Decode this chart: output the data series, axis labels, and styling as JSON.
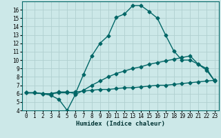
{
  "xlabel": "Humidex (Indice chaleur)",
  "bg_color": "#cce8e8",
  "grid_color": "#b0d0d0",
  "line_color": "#006666",
  "xlim": [
    -0.5,
    23.5
  ],
  "ylim": [
    4,
    17
  ],
  "xticks": [
    0,
    1,
    2,
    3,
    4,
    5,
    6,
    7,
    8,
    9,
    10,
    11,
    12,
    13,
    14,
    15,
    16,
    17,
    18,
    19,
    20,
    21,
    22,
    23
  ],
  "yticks": [
    4,
    5,
    6,
    7,
    8,
    9,
    10,
    11,
    12,
    13,
    14,
    15,
    16
  ],
  "line1_x": [
    0,
    1,
    2,
    3,
    4,
    5,
    6,
    7,
    8,
    9,
    10,
    11,
    12,
    13,
    14,
    15,
    16,
    17,
    18,
    19,
    20,
    21,
    22,
    23
  ],
  "line1_y": [
    6.1,
    6.1,
    6.0,
    6.0,
    6.2,
    6.2,
    6.0,
    8.3,
    10.5,
    12.0,
    12.9,
    15.1,
    15.5,
    16.5,
    16.5,
    15.8,
    15.0,
    13.0,
    11.1,
    10.0,
    10.0,
    9.5,
    9.0,
    7.5
  ],
  "line2_x": [
    0,
    1,
    2,
    3,
    4,
    5,
    6,
    7,
    8,
    9,
    10,
    11,
    12,
    13,
    14,
    15,
    16,
    17,
    18,
    19,
    20,
    21,
    22,
    23
  ],
  "line2_y": [
    6.1,
    6.1,
    6.0,
    5.8,
    5.3,
    4.0,
    5.9,
    6.4,
    7.0,
    7.5,
    8.0,
    8.4,
    8.7,
    9.0,
    9.2,
    9.5,
    9.7,
    9.9,
    10.1,
    10.3,
    10.5,
    9.5,
    8.8,
    7.5
  ],
  "line3_x": [
    0,
    1,
    2,
    3,
    4,
    5,
    6,
    7,
    8,
    9,
    10,
    11,
    12,
    13,
    14,
    15,
    16,
    17,
    18,
    19,
    20,
    21,
    22,
    23
  ],
  "line3_y": [
    6.1,
    6.1,
    6.0,
    6.0,
    6.1,
    6.1,
    6.2,
    6.3,
    6.4,
    6.5,
    6.5,
    6.6,
    6.7,
    6.7,
    6.8,
    6.9,
    7.0,
    7.0,
    7.1,
    7.2,
    7.3,
    7.4,
    7.5,
    7.6
  ]
}
